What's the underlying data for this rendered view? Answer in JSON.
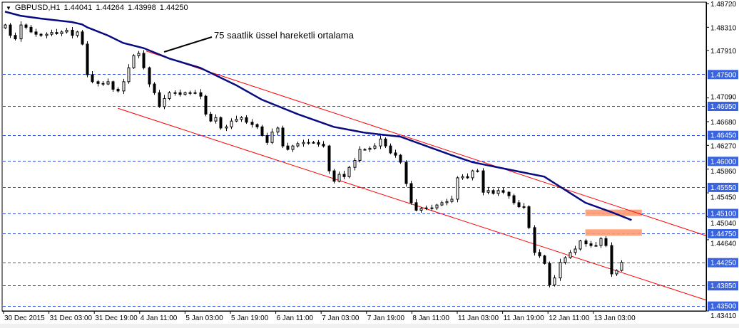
{
  "header": {
    "symbol": "GBPUSD,H1",
    "open": "1.44041",
    "high": "1.44264",
    "low": "1.43998",
    "close": "1.44250"
  },
  "annotation": "75 saatlik üssel hareketli ortalama",
  "colors": {
    "level_line": "#3050e0",
    "label_bg": "#3a63e0",
    "ema": "#0a0a80",
    "channel": "#ff0000",
    "zone": "#ff9a70",
    "bull": "#ffffff",
    "bear": "#000000"
  },
  "chart_data": {
    "type": "candlestick",
    "title": "GBPUSD,H1",
    "ylim": [
      1.4341,
      1.4872
    ],
    "price_axis_ticks": [
      "1.48720",
      "1.48310",
      "1.47910",
      "1.47090",
      "1.46680",
      "1.46270",
      "1.45860",
      "1.45450",
      "1.45040",
      "1.44640",
      "1.43410"
    ],
    "levels": [
      "1.47500",
      "1.46950",
      "1.46450",
      "1.46000",
      "1.45550",
      "1.45100",
      "1.44750",
      "1.44250",
      "1.43850",
      "1.43500"
    ],
    "time_labels": [
      "30 Dec 2015",
      "31 Dec 03:00",
      "31 Dec 19:00",
      "4 Jan 11:00",
      "5 Jan 03:00",
      "5 Jan 19:00",
      "6 Jan 11:00",
      "7 Jan 03:00",
      "7 Jan 19:00",
      "8 Jan 11:00",
      "11 Jan 03:00",
      "11 Jan 19:00",
      "12 Jan 11:00",
      "13 Jan 03:00"
    ],
    "first_open": 1.483,
    "closes": [
      1.4835,
      1.4817,
      1.4811,
      1.4835,
      1.4831,
      1.4823,
      1.4819,
      1.4817,
      1.4819,
      1.4822,
      1.482,
      1.4823,
      1.4826,
      1.4817,
      1.4823,
      1.4802,
      1.4749,
      1.4737,
      1.4734,
      1.4733,
      1.4737,
      1.4724,
      1.4721,
      1.4737,
      1.4761,
      1.4782,
      1.4786,
      1.4761,
      1.4733,
      1.4718,
      1.4694,
      1.4708,
      1.4718,
      1.4718,
      1.4715,
      1.4718,
      1.4718,
      1.4718,
      1.4712,
      1.4681,
      1.4669,
      1.4675,
      1.4657,
      1.4659,
      1.4669,
      1.4672,
      1.4675,
      1.4667,
      1.4663,
      1.4659,
      1.4644,
      1.4632,
      1.465,
      1.4657,
      1.4626,
      1.462,
      1.4626,
      1.463,
      1.4632,
      1.4632,
      1.4632,
      1.4629,
      1.4626,
      1.4583,
      1.4565,
      1.4577,
      1.4573,
      1.4589,
      1.4601,
      1.462,
      1.462,
      1.4622,
      1.4626,
      1.4638,
      1.4626,
      1.4614,
      1.461,
      1.4598,
      1.4561,
      1.4528,
      1.4515,
      1.4518,
      1.4519,
      1.4519,
      1.4524,
      1.4528,
      1.453,
      1.4534,
      1.4571,
      1.4573,
      1.4571,
      1.4583,
      1.4583,
      1.4546,
      1.4549,
      1.4544,
      1.4549,
      1.4546,
      1.454,
      1.4528,
      1.4521,
      1.4521,
      1.4485,
      1.4442,
      1.4436,
      1.4423,
      1.4386,
      1.4398,
      1.4425,
      1.4433,
      1.4442,
      1.4448,
      1.4462,
      1.4457,
      1.4454,
      1.4454,
      1.4466,
      1.4454,
      1.4405,
      1.4411,
      1.4425
    ],
    "ema_75": [
      [
        0,
        1.4858
      ],
      [
        3,
        1.4851
      ],
      [
        7,
        1.4846
      ],
      [
        13,
        1.484
      ],
      [
        15,
        1.4836
      ],
      [
        16,
        1.4831
      ],
      [
        20,
        1.4817
      ],
      [
        23,
        1.4804
      ],
      [
        27,
        1.4795
      ],
      [
        32,
        1.4777
      ],
      [
        38,
        1.4761
      ],
      [
        45,
        1.4731
      ],
      [
        50,
        1.4706
      ],
      [
        57,
        1.4681
      ],
      [
        64,
        1.4659
      ],
      [
        70,
        1.4649
      ],
      [
        77,
        1.4642
      ],
      [
        82,
        1.4626
      ],
      [
        87,
        1.461
      ],
      [
        91,
        1.4598
      ],
      [
        96,
        1.4589
      ],
      [
        105,
        1.4573
      ],
      [
        108,
        1.4556
      ],
      [
        113,
        1.4528
      ],
      [
        118,
        1.4512
      ],
      [
        122,
        1.4498
      ]
    ],
    "channel_upper": [
      [
        27.5,
        1.479
      ],
      [
        143,
        1.4452
      ]
    ],
    "channel_lower": [
      [
        22,
        1.4691
      ],
      [
        143,
        1.4341
      ]
    ],
    "zones": [
      [
        113,
        124,
        1.4516,
        1.4505
      ],
      [
        113,
        124,
        1.4482,
        1.4471
      ]
    ]
  }
}
